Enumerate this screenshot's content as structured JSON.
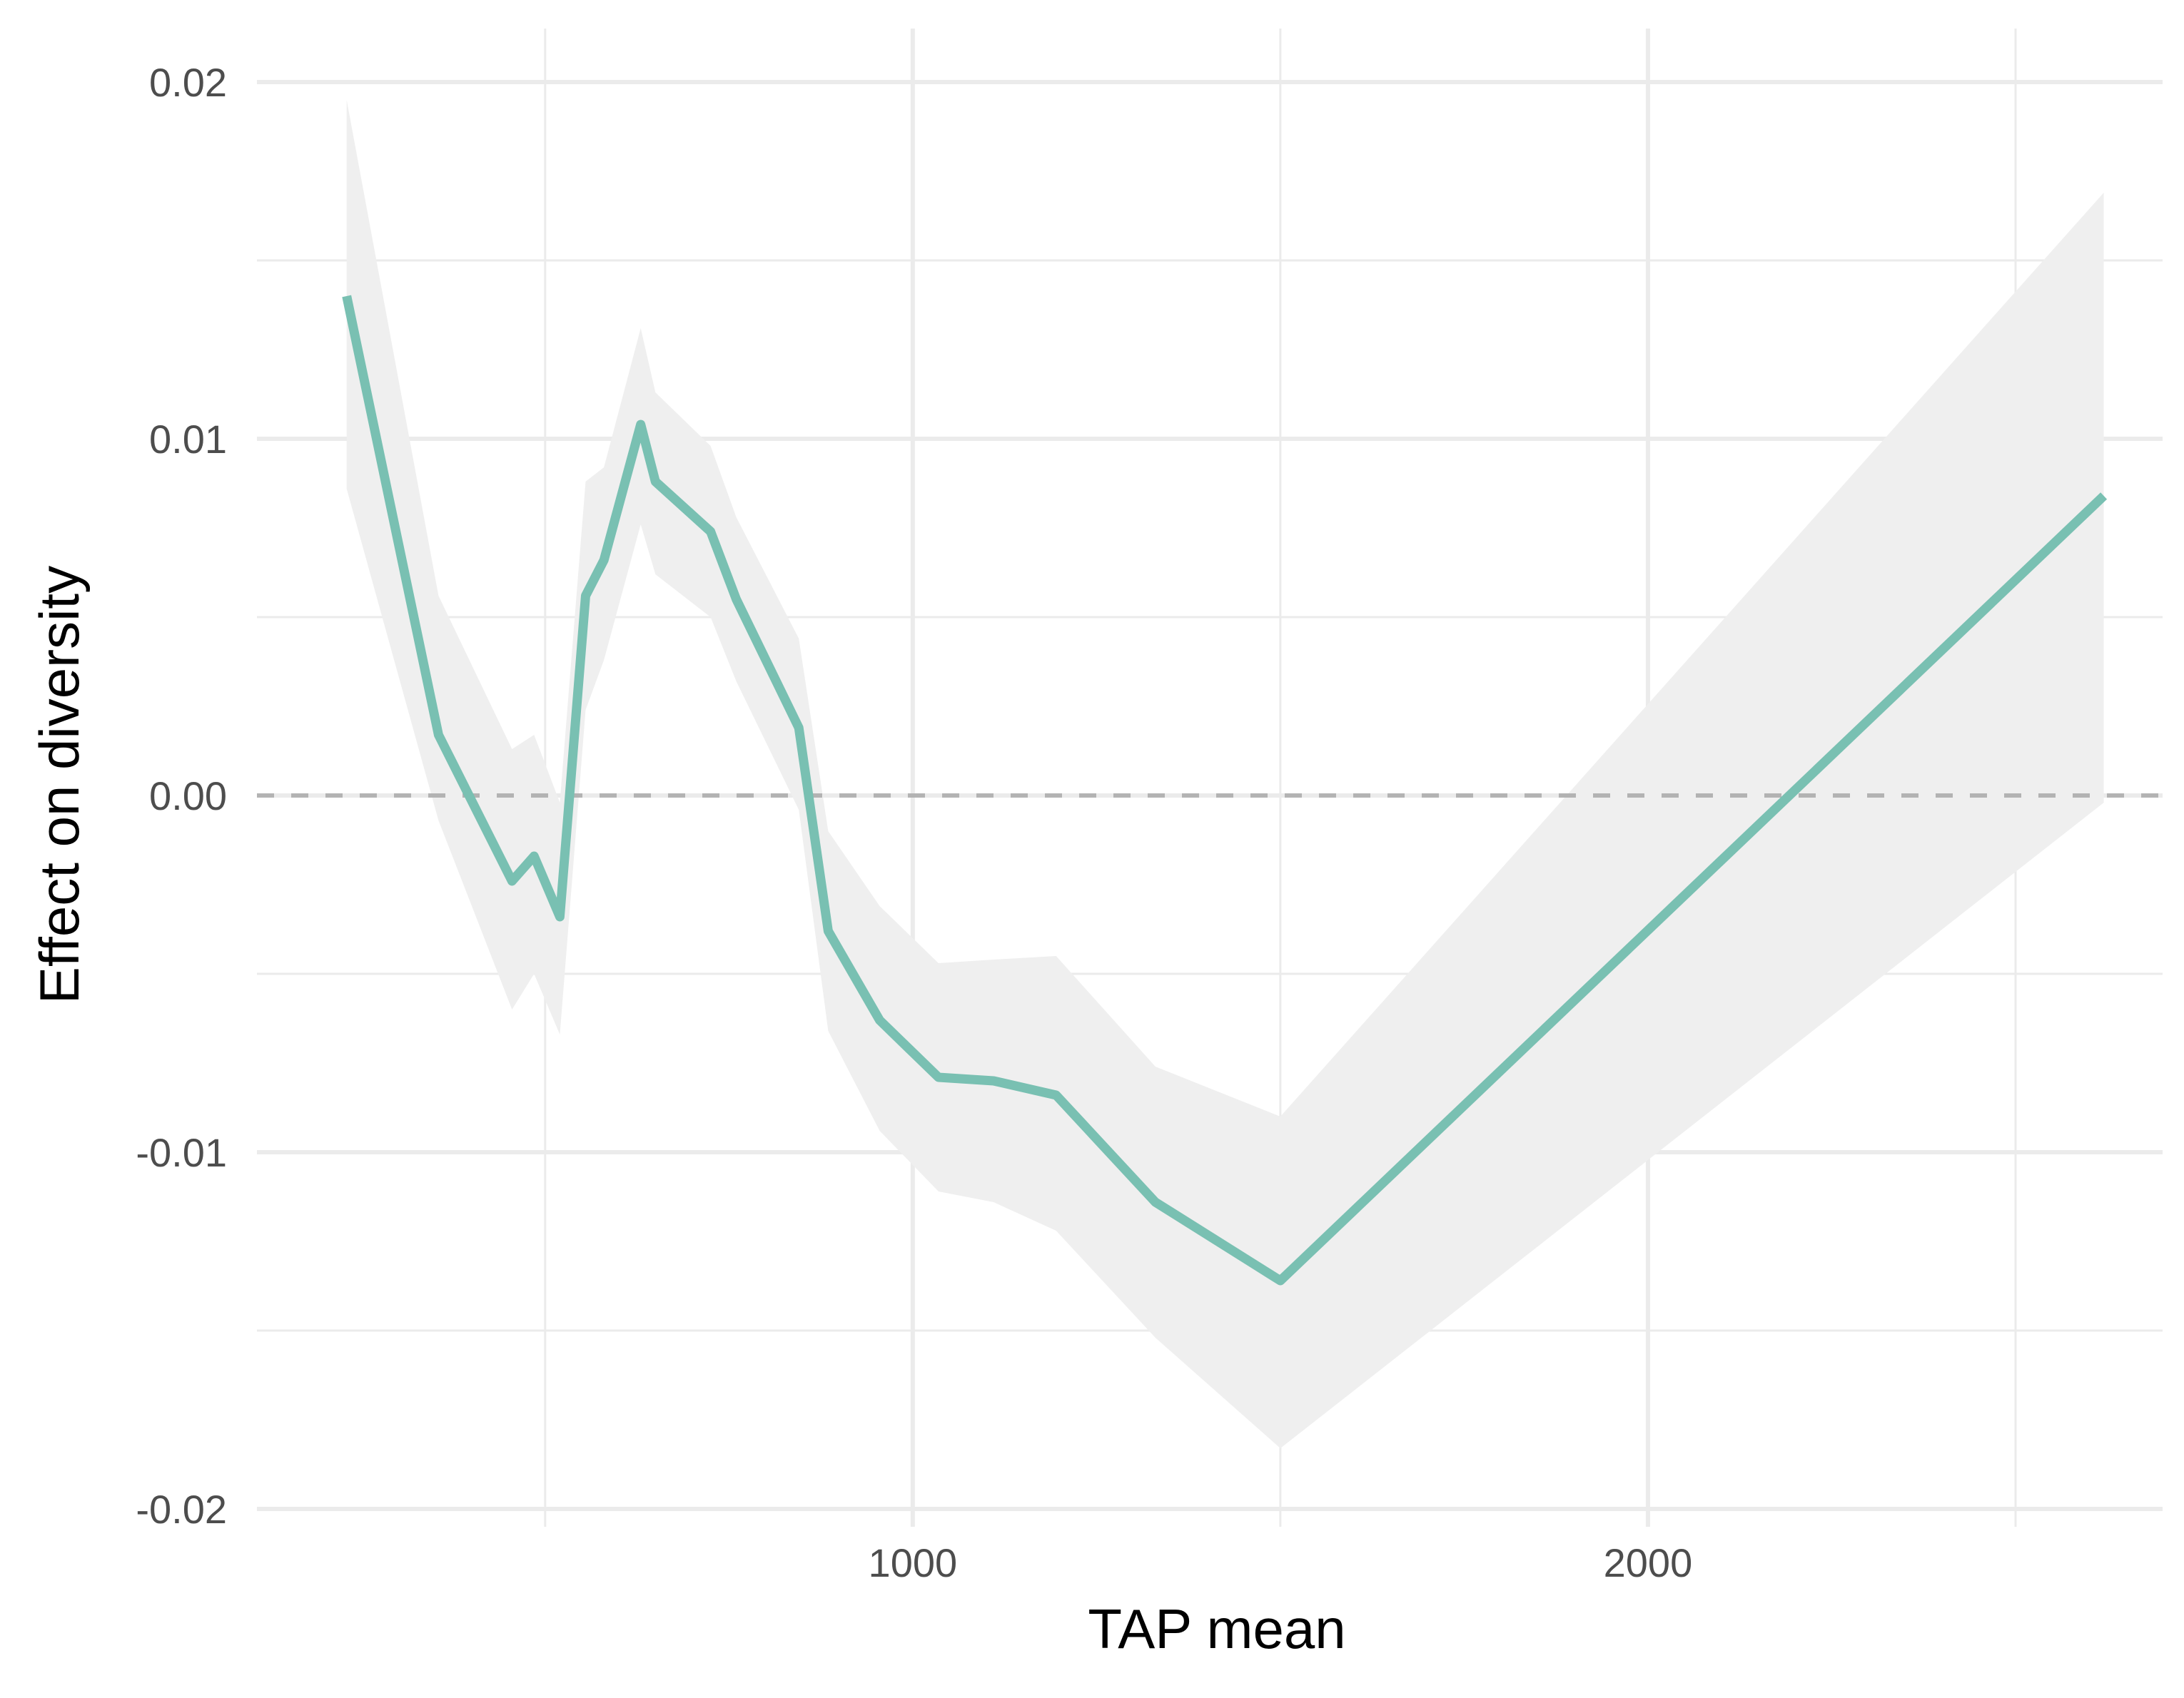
{
  "chart_data": {
    "type": "line",
    "xlabel": "TAP mean",
    "ylabel": "Effect on diversity",
    "xlim": [
      108,
      2700
    ],
    "ylim": [
      -0.0205,
      0.0215
    ],
    "x_major_ticks": [
      1000,
      2000
    ],
    "x_minor_ticks": [
      500,
      1500,
      2500
    ],
    "y_major_ticks": [
      -0.02,
      -0.01,
      0.0,
      0.01,
      0.02
    ],
    "y_minor_ticks": [
      -0.015,
      -0.005,
      0.005,
      0.015
    ],
    "y_tick_labels": [
      "-0.02",
      "-0.01",
      "0.00",
      "0.01",
      "0.02"
    ],
    "x_tick_labels": [
      "1000",
      "2000"
    ],
    "grid": true,
    "reference_line": {
      "y": 0.0,
      "style": "dashed",
      "color": "#b3b3b3"
    },
    "series": [
      {
        "color": "#79c0b2",
        "ribbon_color": "#efefef",
        "x": [
          230,
          355,
          455,
          485,
          520,
          555,
          580,
          630,
          650,
          725,
          760,
          845,
          885,
          955,
          1035,
          1110,
          1195,
          1330,
          1500,
          2620
        ],
        "y": [
          0.014,
          0.0017,
          -0.0024,
          -0.0017,
          -0.0034,
          0.0056,
          0.0066,
          0.0104,
          0.0088,
          0.0074,
          0.0055,
          0.0019,
          -0.0038,
          -0.0063,
          -0.0079,
          -0.008,
          -0.0084,
          -0.0114,
          -0.0136,
          0.0084
        ],
        "lower": [
          0.0086,
          -0.0007,
          -0.006,
          -0.005,
          -0.0067,
          0.0024,
          0.0038,
          0.0076,
          0.0062,
          0.005,
          0.0032,
          -0.0004,
          -0.0066,
          -0.0094,
          -0.0111,
          -0.0114,
          -0.0122,
          -0.0152,
          -0.0183,
          -0.0002
        ],
        "upper": [
          0.0195,
          0.0056,
          0.0013,
          0.0017,
          -0.0002,
          0.0088,
          0.0092,
          0.0131,
          0.0113,
          0.0098,
          0.0078,
          0.0044,
          -0.001,
          -0.0031,
          -0.0047,
          -0.0046,
          -0.0045,
          -0.0076,
          -0.009,
          0.0169
        ]
      }
    ]
  }
}
